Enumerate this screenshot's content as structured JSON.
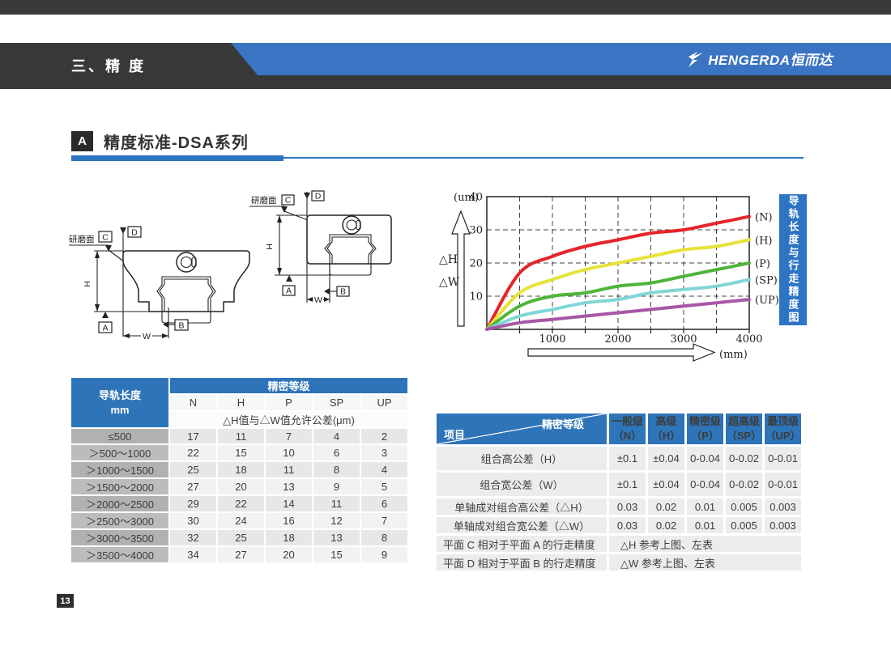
{
  "header": {
    "title": "三、精 度",
    "logo_text": "HENGERDA恒而达"
  },
  "section": {
    "badge": "A",
    "title": "精度标准-DSA系列"
  },
  "diagram": {
    "surface": "研磨面",
    "c": "C",
    "d": "D",
    "h": "H",
    "a": "A",
    "b": "B",
    "w": "W"
  },
  "chart_sidebar": "导轨长度与行走精度图",
  "chart_data": {
    "type": "line",
    "title": "导轨长度与行走精度图",
    "x_unit": "(mm)",
    "y_unit": "(um)",
    "y_axis_arrows": [
      "△H",
      "△W"
    ],
    "x": [
      0,
      500,
      1000,
      1500,
      2000,
      2500,
      3000,
      3500,
      4000
    ],
    "x_ticks": [
      1000,
      2000,
      3000,
      4000
    ],
    "y_ticks": [
      10,
      20,
      30,
      40
    ],
    "xlim": [
      0,
      4000
    ],
    "ylim": [
      0,
      40
    ],
    "grid": "dashed",
    "legend_position": "right",
    "series": [
      {
        "name": "(N)",
        "color": "#e62529",
        "values": [
          0,
          17,
          22,
          25,
          27,
          29,
          30,
          32,
          34
        ]
      },
      {
        "name": "(H)",
        "color": "#e6e33a",
        "values": [
          0,
          11,
          15,
          18,
          20,
          22,
          24,
          25,
          27
        ]
      },
      {
        "name": "(P)",
        "color": "#4fb43a",
        "values": [
          0,
          7,
          10,
          11,
          13,
          14,
          16,
          18,
          20
        ]
      },
      {
        "name": "(SP)",
        "color": "#80d6d6",
        "values": [
          0,
          4,
          6,
          8,
          9,
          11,
          12,
          13,
          15
        ]
      },
      {
        "name": "(UP)",
        "color": "#a757a7",
        "values": [
          0,
          2,
          3,
          4,
          5,
          6,
          7,
          8,
          9
        ]
      }
    ]
  },
  "left_table": {
    "col0_title": "导轨长度",
    "col0_sub": "mm",
    "group_header": "精密等级",
    "grades": [
      "N",
      "H",
      "P",
      "SP",
      "UP"
    ],
    "subheader": "△H值与△W值允许公差(μm)",
    "rows": [
      {
        "range": "≤500",
        "values": [
          17,
          11,
          7,
          4,
          2
        ]
      },
      {
        "range": "＞500～1000",
        "values": [
          22,
          15,
          10,
          6,
          3
        ]
      },
      {
        "range": "＞1000～1500",
        "values": [
          25,
          18,
          11,
          8,
          4
        ]
      },
      {
        "range": "＞1500～2000",
        "values": [
          27,
          20,
          13,
          9,
          5
        ]
      },
      {
        "range": "＞2000～2500",
        "values": [
          29,
          22,
          14,
          11,
          6
        ]
      },
      {
        "range": "＞2500～3000",
        "values": [
          30,
          24,
          16,
          12,
          7
        ]
      },
      {
        "range": "＞3000～3500",
        "values": [
          32,
          25,
          18,
          13,
          8
        ]
      },
      {
        "range": "＞3500～4000",
        "values": [
          34,
          27,
          20,
          15,
          9
        ]
      }
    ]
  },
  "right_table": {
    "corner_top": "精密等级",
    "corner_bottom": "项目",
    "columns": [
      [
        "一般级",
        "（N）"
      ],
      [
        "高级",
        "（H）"
      ],
      [
        "精密级",
        "（P）"
      ],
      [
        "超高级",
        "（SP）"
      ],
      [
        "最顶级",
        "（UP）"
      ]
    ],
    "rows": [
      {
        "label": "组合高公差（H）",
        "values": [
          "±0.1",
          "±0.04",
          "0-0.04",
          "0-0.02",
          "0-0.01"
        ]
      },
      {
        "label": "组合宽公差（W）",
        "values": [
          "±0.1",
          "±0.04",
          "0-0.04",
          "0-0.02",
          "0-0.01"
        ]
      },
      {
        "label": "单轴成对组合高公差（△H）",
        "values": [
          "0.03",
          "0.02",
          "0.01",
          "0.005",
          "0.003"
        ]
      },
      {
        "label": "单轴成对组合宽公差（△W）",
        "values": [
          "0.03",
          "0.02",
          "0.01",
          "0.005",
          "0.003"
        ]
      },
      {
        "label": "平面 C 相对于平面 A 的行走精度",
        "span": "△H 参考上图、左表"
      },
      {
        "label": "平面 D 相对于平面 B 的行走精度",
        "span": "△W 参考上图、左表"
      }
    ]
  },
  "page_number": "13",
  "colors": {
    "accent_blue": "#2e74b9",
    "band_blue": "#3a74c2",
    "dark_band": "#383838"
  }
}
